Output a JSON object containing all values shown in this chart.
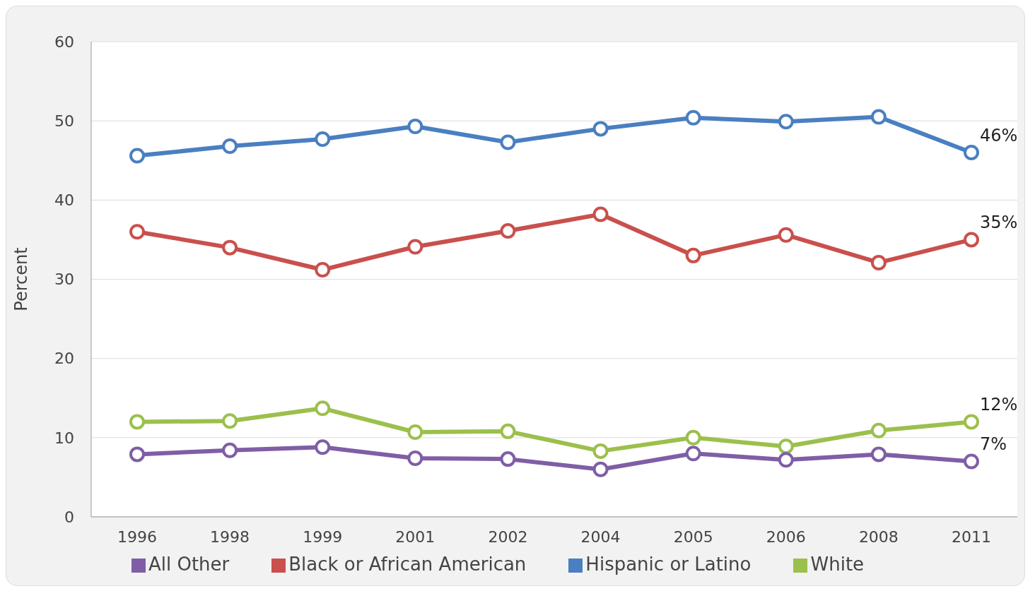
{
  "chart_data": {
    "type": "line",
    "categories": [
      "1996",
      "1998",
      "1999",
      "2001",
      "2002",
      "2004",
      "2005",
      "2006",
      "2008",
      "2011"
    ],
    "ylabel": "Percent",
    "ylim": [
      0,
      60
    ],
    "yticks": [
      0,
      10,
      20,
      30,
      40,
      50,
      60
    ],
    "grid": "y",
    "legend": "bottom",
    "marker": "circle",
    "line_style": "solid",
    "series": [
      {
        "name": "Hispanic or Latino",
        "color": "#4a7fc1",
        "values": [
          45.6,
          46.8,
          47.7,
          49.3,
          47.3,
          49.0,
          50.4,
          49.9,
          50.5,
          46
        ],
        "value_labels": [
          null,
          null,
          null,
          null,
          null,
          null,
          null,
          null,
          null,
          "46%"
        ]
      },
      {
        "name": "Black or African American",
        "color": "#c9504c",
        "values": [
          36.0,
          34.0,
          31.2,
          34.1,
          36.1,
          38.2,
          33.0,
          35.6,
          32.1,
          35
        ],
        "value_labels": [
          null,
          null,
          null,
          null,
          null,
          null,
          null,
          null,
          null,
          "35%"
        ]
      },
      {
        "name": "White",
        "color": "#9bc04c",
        "values": [
          12.0,
          12.1,
          13.7,
          10.7,
          10.8,
          8.3,
          10.0,
          8.9,
          10.9,
          12
        ],
        "value_labels": [
          null,
          null,
          null,
          null,
          null,
          null,
          null,
          null,
          null,
          "12%"
        ]
      },
      {
        "name": "All Other",
        "color": "#7f5ea6",
        "values": [
          7.9,
          8.4,
          8.8,
          7.4,
          7.3,
          6.0,
          8.0,
          7.2,
          7.9,
          7
        ],
        "value_labels": [
          null,
          null,
          null,
          null,
          null,
          null,
          null,
          null,
          null,
          "7%"
        ]
      }
    ]
  }
}
